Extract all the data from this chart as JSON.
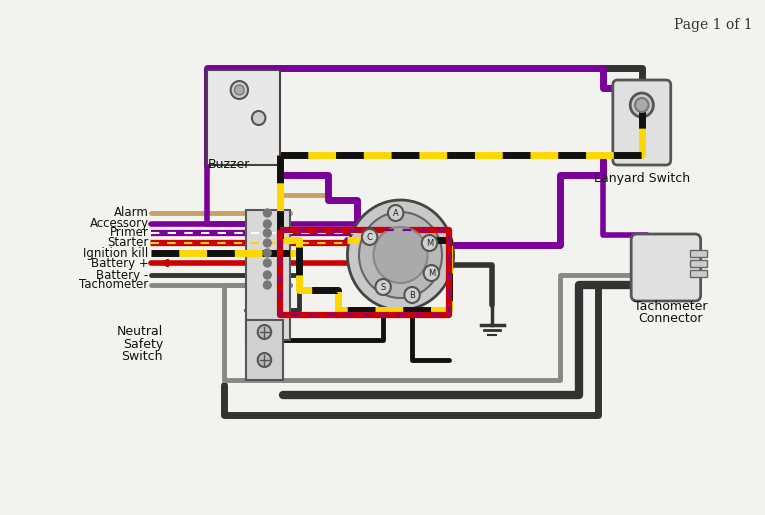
{
  "page_label": "Page 1 of 1",
  "colors": {
    "purple": "#7B0099",
    "yellow": "#FFD700",
    "black": "#111111",
    "red": "#CC0000",
    "dark_gray": "#333333",
    "gray": "#888888",
    "light_gray": "#cccccc",
    "tan": "#C8A068",
    "white": "#FFFFFF",
    "bg": "#f2f2ee"
  },
  "labels": {
    "alarm": "Alarm",
    "accessory": "Accessory",
    "primer": "Primer",
    "starter": "Starter",
    "ignition_kill": "Ignition kill",
    "battery_pos": "Battery +",
    "battery_neg": "Battery -",
    "tachometer": "Tachometer",
    "neutral": "Neutral",
    "safety": "Safety",
    "switch_lbl": "Switch",
    "buzzer": "Buzzer",
    "lanyard": "Lanyard Switch",
    "tach_conn1": "Tachometer",
    "tach_conn2": "Connector"
  }
}
